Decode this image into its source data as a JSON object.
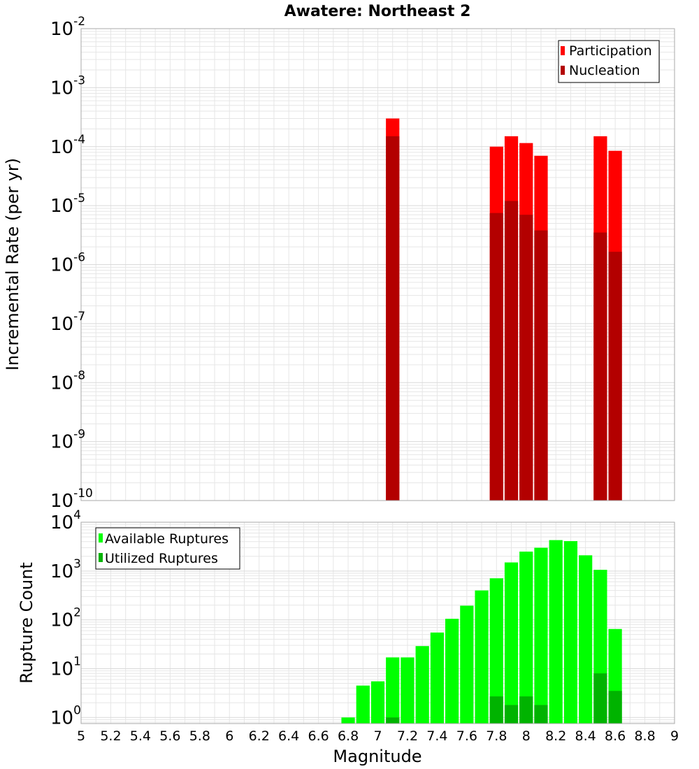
{
  "title": "Awatere: Northeast 2",
  "colors": {
    "participation": "#ff0000",
    "nucleation": "#b30000",
    "available": "#00ff00",
    "utilized": "#00b300",
    "grid": "#e6e6e6",
    "frame": "#aaaaaa"
  },
  "chart_data": [
    {
      "type": "bar",
      "subtype": "stacked-overlay",
      "ylabel": "Incremental Rate (per yr)",
      "xlabel": "",
      "yscale": "log",
      "xlim": [
        5,
        9
      ],
      "ylim": [
        1e-10,
        0.01
      ],
      "yticks": [
        {
          "base": "10",
          "exp": "-2"
        },
        {
          "base": "10",
          "exp": "-3"
        },
        {
          "base": "10",
          "exp": "-4"
        },
        {
          "base": "10",
          "exp": "-5"
        },
        {
          "base": "10",
          "exp": "-6"
        },
        {
          "base": "10",
          "exp": "-7"
        },
        {
          "base": "10",
          "exp": "-8"
        },
        {
          "base": "10",
          "exp": "-9"
        },
        {
          "base": "10",
          "exp": "-10"
        }
      ],
      "legend": [
        "Participation",
        "Nucleation"
      ],
      "legend_position": "top-right",
      "grid": true,
      "x": [
        7.1,
        7.8,
        7.9,
        8.0,
        8.1,
        8.5,
        8.6
      ],
      "series": [
        {
          "name": "Participation",
          "values": [
            0.0003,
            0.0001,
            0.00015,
            0.000115,
            7e-05,
            0.00015,
            8.5e-05
          ]
        },
        {
          "name": "Nucleation",
          "values": [
            0.00015,
            7.5e-06,
            1.2e-05,
            7e-06,
            3.8e-06,
            3.5e-06,
            1.65e-06
          ]
        }
      ]
    },
    {
      "type": "bar",
      "subtype": "stacked-overlay",
      "ylabel": "Rupture Count",
      "xlabel": "Magnitude",
      "yscale": "log",
      "xlim": [
        5,
        9
      ],
      "ylim": [
        0.75,
        10000
      ],
      "yticks": [
        {
          "base": "10",
          "exp": "4"
        },
        {
          "base": "10",
          "exp": "3"
        },
        {
          "base": "10",
          "exp": "2"
        },
        {
          "base": "10",
          "exp": "1"
        },
        {
          "base": "10",
          "exp": "0"
        }
      ],
      "xticks": [
        "5",
        "5.2",
        "5.4",
        "5.6",
        "5.8",
        "6",
        "6.2",
        "6.4",
        "6.6",
        "6.8",
        "7",
        "7.2",
        "7.4",
        "7.6",
        "7.8",
        "8",
        "8.2",
        "8.4",
        "8.6",
        "8.8",
        "9"
      ],
      "legend": [
        "Available Ruptures",
        "Utilized Ruptures"
      ],
      "legend_position": "top-left",
      "grid": true,
      "x": [
        6.8,
        6.9,
        7.0,
        7.1,
        7.2,
        7.3,
        7.4,
        7.5,
        7.6,
        7.7,
        7.8,
        7.9,
        8.0,
        8.1,
        8.2,
        8.3,
        8.4,
        8.5,
        8.6
      ],
      "series": [
        {
          "name": "Available Ruptures",
          "values": [
            1,
            4.5,
            5.5,
            17,
            17,
            29,
            55,
            105,
            195,
            400,
            710,
            1500,
            2500,
            3000,
            4300,
            4100,
            2100,
            1060,
            65
          ]
        },
        {
          "name": "Utilized Ruptures",
          "values": [
            0,
            0,
            0,
            1,
            0,
            0,
            0,
            0,
            0,
            0,
            2.7,
            1.8,
            2.7,
            1.8,
            0,
            0,
            0,
            8,
            3.5
          ]
        }
      ]
    }
  ]
}
